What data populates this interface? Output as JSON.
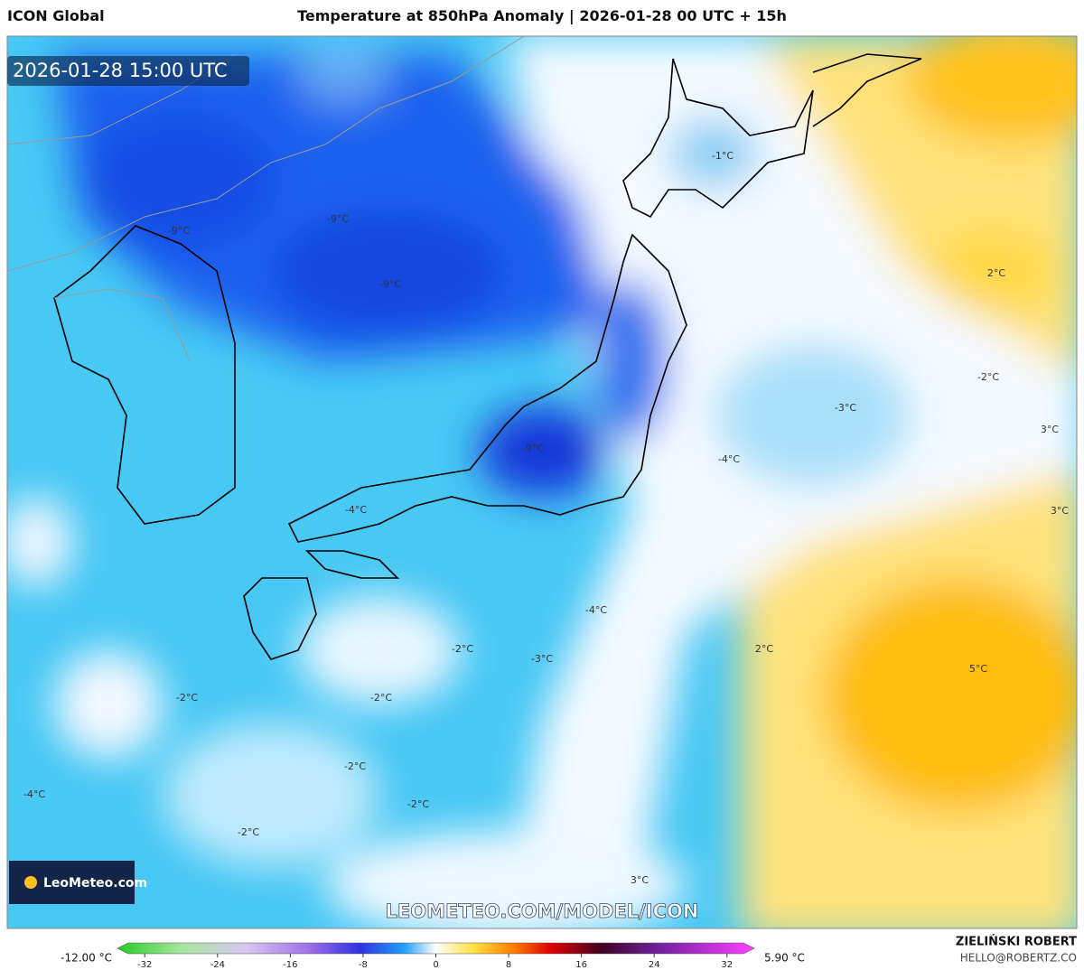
{
  "header": {
    "model": "ICON Global",
    "title": "Temperature at 850hPa Anomaly | 2026-01-28 00 UTC + 15h"
  },
  "map": {
    "timestamp": "2026-01-28 15:00 UTC",
    "logo": "LeoMeteo.com",
    "watermark": "LEOMETEO.COM/MODEL/ICON",
    "contour_labels": [
      "-1°C",
      "-9°C",
      "-9°C",
      "-9°C",
      "2°C",
      "-2°C",
      "-3°C",
      "3°C",
      "-9°C",
      "-4°C",
      "-4°C",
      "3°C",
      "-4°C",
      "2°C",
      "5°C",
      "-2°C",
      "-3°C",
      "-2°C",
      "-2°C",
      "-2°C",
      "-2°C",
      "-4°C",
      "-2°C",
      "3°C"
    ]
  },
  "colorbar": {
    "min_label": "-12.00 °C",
    "max_label": "5.90 °C",
    "lim": [
      -35,
      35
    ],
    "ticks": [
      -32,
      -24,
      -16,
      -8,
      0,
      8,
      16,
      24,
      32
    ]
  },
  "footer": {
    "author": "ZIELIŃSKI ROBERT",
    "contact": "HELLO@ROBERTZ.CO"
  }
}
